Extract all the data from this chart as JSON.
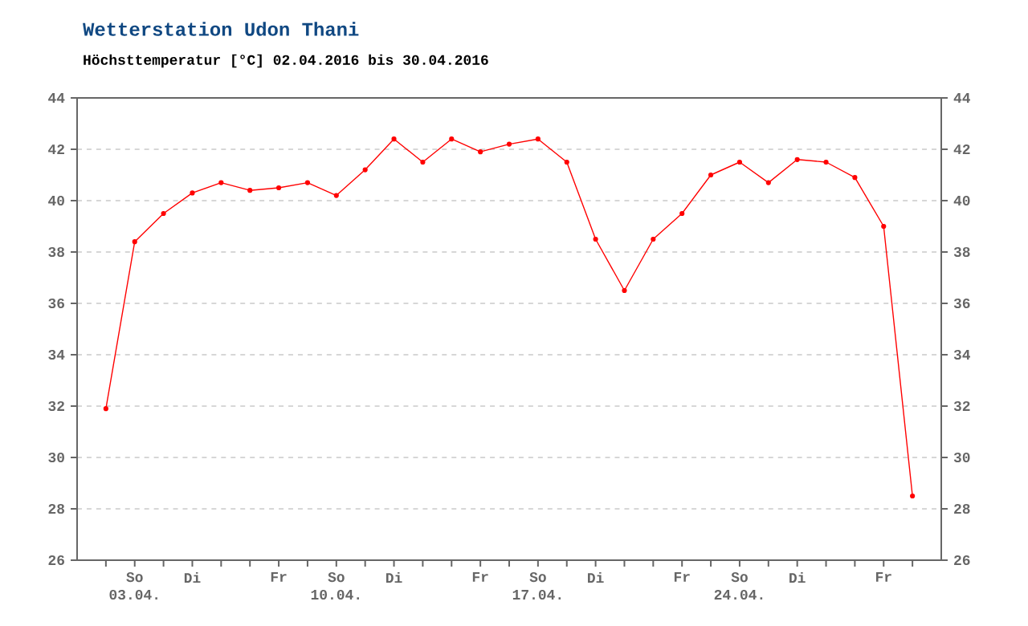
{
  "chart_data": {
    "type": "line",
    "title": "Wetterstation Udon Thani",
    "subtitle": "Höchsttemperatur [°C] 02.04.2016 bis 30.04.2016",
    "x": [
      "2016-04-02",
      "2016-04-03",
      "2016-04-04",
      "2016-04-05",
      "2016-04-06",
      "2016-04-07",
      "2016-04-08",
      "2016-04-09",
      "2016-04-10",
      "2016-04-11",
      "2016-04-12",
      "2016-04-13",
      "2016-04-14",
      "2016-04-15",
      "2016-04-16",
      "2016-04-17",
      "2016-04-18",
      "2016-04-19",
      "2016-04-20",
      "2016-04-21",
      "2016-04-22",
      "2016-04-23",
      "2016-04-24",
      "2016-04-25",
      "2016-04-26",
      "2016-04-27",
      "2016-04-28",
      "2016-04-29",
      "2016-04-30"
    ],
    "series": [
      {
        "color": "#ff0000",
        "values": [
          31.9,
          38.4,
          39.5,
          40.3,
          40.7,
          40.4,
          40.5,
          40.7,
          40.2,
          41.2,
          42.4,
          41.5,
          42.4,
          41.9,
          42.2,
          42.4,
          41.5,
          38.5,
          36.5,
          38.5,
          39.5,
          41.0,
          41.5,
          40.7,
          41.6,
          41.5,
          40.9,
          39.0,
          28.5
        ]
      }
    ],
    "marker": "circle",
    "line_style": "solid",
    "grid": "y",
    "xlim": [
      "2016-04-01",
      "2016-05-01"
    ],
    "xticks": [
      {
        "value": "2016-04-02",
        "label": null
      },
      {
        "value": "2016-04-03",
        "label": "So 03.04."
      },
      {
        "value": "2016-04-04",
        "label": null
      },
      {
        "value": "2016-04-05",
        "label": "Di"
      },
      {
        "value": "2016-04-06",
        "label": null
      },
      {
        "value": "2016-04-07",
        "label": null
      },
      {
        "value": "2016-04-08",
        "label": "Fr"
      },
      {
        "value": "2016-04-09",
        "label": null
      },
      {
        "value": "2016-04-10",
        "label": "So 10.04."
      },
      {
        "value": "2016-04-11",
        "label": null
      },
      {
        "value": "2016-04-12",
        "label": "Di"
      },
      {
        "value": "2016-04-13",
        "label": null
      },
      {
        "value": "2016-04-14",
        "label": null
      },
      {
        "value": "2016-04-15",
        "label": "Fr"
      },
      {
        "value": "2016-04-16",
        "label": null
      },
      {
        "value": "2016-04-17",
        "label": "So 17.04."
      },
      {
        "value": "2016-04-18",
        "label": null
      },
      {
        "value": "2016-04-19",
        "label": "Di"
      },
      {
        "value": "2016-04-20",
        "label": null
      },
      {
        "value": "2016-04-21",
        "label": null
      },
      {
        "value": "2016-04-22",
        "label": "Fr"
      },
      {
        "value": "2016-04-23",
        "label": null
      },
      {
        "value": "2016-04-24",
        "label": "So 24.04."
      },
      {
        "value": "2016-04-25",
        "label": null
      },
      {
        "value": "2016-04-26",
        "label": "Di"
      },
      {
        "value": "2016-04-27",
        "label": null
      },
      {
        "value": "2016-04-28",
        "label": null
      },
      {
        "value": "2016-04-29",
        "label": "Fr"
      },
      {
        "value": "2016-04-30",
        "label": null
      }
    ],
    "ylim": [
      26,
      44
    ],
    "yticks": [
      26,
      28,
      30,
      32,
      34,
      36,
      38,
      40,
      42,
      44
    ],
    "y2lim": [
      26,
      44
    ],
    "y2ticks": [
      26,
      28,
      30,
      32,
      34,
      36,
      38,
      40,
      42,
      44
    ]
  }
}
